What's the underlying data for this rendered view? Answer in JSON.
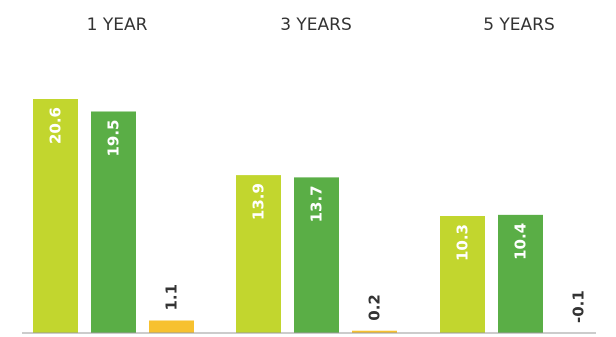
{
  "chart_data": {
    "type": "bar",
    "categories": [
      "1 YEAR",
      "3 YEARS",
      "5 YEARS"
    ],
    "series": [
      {
        "color": "#c2d62e",
        "values": [
          20.6,
          13.9,
          10.3
        ]
      },
      {
        "color": "#5aae46",
        "values": [
          19.5,
          13.7,
          10.4
        ]
      },
      {
        "color": "#f7c12f",
        "values": [
          1.1,
          0.2,
          -0.1
        ]
      }
    ],
    "value_labels": [
      [
        "20.6",
        "13.9",
        "10.3"
      ],
      [
        "19.5",
        "13.7",
        "10.4"
      ],
      [
        "1.1",
        "0.2",
        "-0.1"
      ]
    ],
    "ylim": [
      0,
      21
    ],
    "grid": false,
    "legend": "none",
    "baseline_color": "#999999"
  }
}
